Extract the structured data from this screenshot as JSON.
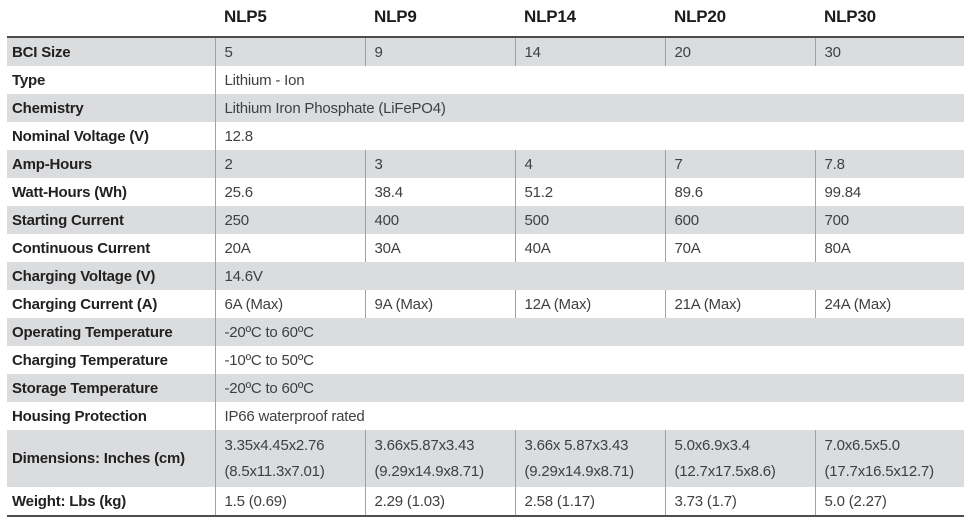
{
  "colors": {
    "stripe": "#dbdcdd",
    "border_dark": "#4c4d4f",
    "divider": "#9fa1a4",
    "label_color": "#232021",
    "value_color": "#3e4044",
    "header_color": "#1c1c1e"
  },
  "table": {
    "columns": [
      "NLP5",
      "NLP9",
      "NLP14",
      "NLP20",
      "NLP30"
    ],
    "rows": [
      {
        "label": "BCI Size",
        "values": [
          "5",
          "9",
          "14",
          "20",
          "30"
        ]
      },
      {
        "label": "Type",
        "span": "Lithium - Ion"
      },
      {
        "label": "Chemistry",
        "span": "Lithium Iron Phosphate (LiFePO4)"
      },
      {
        "label": "Nominal Voltage (V)",
        "span": "12.8"
      },
      {
        "label": "Amp-Hours",
        "values": [
          "2",
          "3",
          "4",
          "7",
          "7.8"
        ]
      },
      {
        "label": "Watt-Hours (Wh)",
        "values": [
          "25.6",
          "38.4",
          "51.2",
          "89.6",
          "99.84"
        ]
      },
      {
        "label": "Starting Current",
        "values": [
          "250",
          "400",
          "500",
          "600",
          "700"
        ]
      },
      {
        "label": "Continuous Current",
        "values": [
          "20A",
          "30A",
          "40A",
          "70A",
          "80A"
        ]
      },
      {
        "label": "Charging Voltage (V)",
        "span": "14.6V"
      },
      {
        "label": "Charging Current (A)",
        "values": [
          "6A (Max)",
          "9A (Max)",
          "12A (Max)",
          "21A (Max)",
          "24A (Max)"
        ]
      },
      {
        "label": "Operating Temperature",
        "span": "-20ºC to 60ºC"
      },
      {
        "label": "Charging Temperature",
        "span": "-10ºC to 50ºC"
      },
      {
        "label": "Storage Temperature",
        "span": "-20ºC to 60ºC"
      },
      {
        "label": "Housing Protection",
        "span": "IP66 waterproof rated"
      },
      {
        "label": "Dimensions: Inches (cm)",
        "values": [
          [
            "3.35x4.45x2.76",
            "(8.5x11.3x7.01)"
          ],
          [
            "3.66x5.87x3.43",
            "(9.29x14.9x8.71)"
          ],
          [
            "3.66x 5.87x3.43",
            "(9.29x14.9x8.71)"
          ],
          [
            "5.0x6.9x3.4",
            "(12.7x17.5x8.6)"
          ],
          [
            "7.0x6.5x5.0",
            "(17.7x16.5x12.7)"
          ]
        ]
      },
      {
        "label": "Weight: Lbs (kg)",
        "values": [
          "1.5 (0.69)",
          "2.29 (1.03)",
          "2.58 (1.17)",
          "3.73 (1.7)",
          "5.0 (2.27)"
        ]
      }
    ]
  }
}
